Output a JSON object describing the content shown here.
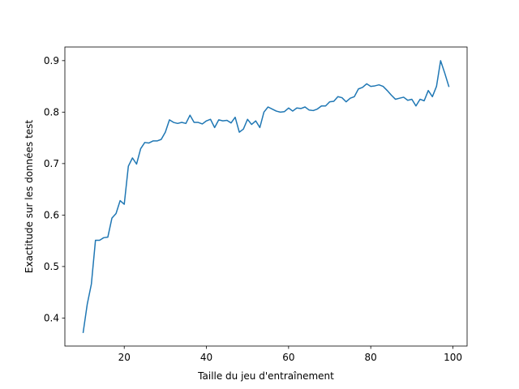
{
  "chart_data": {
    "type": "line",
    "title": "",
    "xlabel": "Taille du jeu d'entraînement",
    "ylabel": "Exactitude sur les données test",
    "xlim": [
      5.55,
      103.45
    ],
    "ylim": [
      0.3455,
      0.9265
    ],
    "xticks": [
      20,
      40,
      60,
      80,
      100
    ],
    "xtick_labels": [
      "20",
      "40",
      "60",
      "80",
      "100"
    ],
    "yticks": [
      0.4,
      0.5,
      0.6,
      0.7,
      0.8,
      0.9
    ],
    "ytick_labels": [
      "0.4",
      "0.5",
      "0.6",
      "0.7",
      "0.8",
      "0.9"
    ],
    "grid": false,
    "series": [
      {
        "color": "#1f77b4",
        "x": [
          10,
          11,
          12,
          13,
          14,
          15,
          16,
          17,
          18,
          19,
          20,
          21,
          22,
          23,
          24,
          25,
          26,
          27,
          28,
          29,
          30,
          31,
          32,
          33,
          34,
          35,
          36,
          37,
          38,
          39,
          40,
          41,
          42,
          43,
          44,
          45,
          46,
          47,
          48,
          49,
          50,
          51,
          52,
          53,
          54,
          55,
          56,
          57,
          58,
          59,
          60,
          61,
          62,
          63,
          64,
          65,
          66,
          67,
          68,
          69,
          70,
          71,
          72,
          73,
          74,
          75,
          76,
          77,
          78,
          79,
          80,
          81,
          82,
          83,
          84,
          85,
          86,
          87,
          88,
          89,
          90,
          91,
          92,
          93,
          94,
          95,
          96,
          97,
          98,
          99
        ],
        "y": [
          0.372,
          0.427,
          0.466,
          0.551,
          0.551,
          0.556,
          0.557,
          0.594,
          0.603,
          0.628,
          0.621,
          0.695,
          0.711,
          0.699,
          0.729,
          0.741,
          0.74,
          0.744,
          0.744,
          0.747,
          0.761,
          0.785,
          0.78,
          0.778,
          0.78,
          0.778,
          0.794,
          0.78,
          0.78,
          0.777,
          0.783,
          0.786,
          0.77,
          0.785,
          0.783,
          0.784,
          0.779,
          0.79,
          0.761,
          0.767,
          0.786,
          0.776,
          0.783,
          0.77,
          0.8,
          0.81,
          0.806,
          0.802,
          0.8,
          0.801,
          0.808,
          0.802,
          0.808,
          0.807,
          0.81,
          0.804,
          0.803,
          0.806,
          0.812,
          0.812,
          0.82,
          0.821,
          0.83,
          0.828,
          0.82,
          0.827,
          0.83,
          0.845,
          0.848,
          0.855,
          0.85,
          0.851,
          0.853,
          0.85,
          0.842,
          0.833,
          0.825,
          0.827,
          0.829,
          0.823,
          0.825,
          0.812,
          0.825,
          0.822,
          0.842,
          0.83,
          0.85,
          0.9,
          0.876,
          0.85
        ]
      }
    ]
  }
}
